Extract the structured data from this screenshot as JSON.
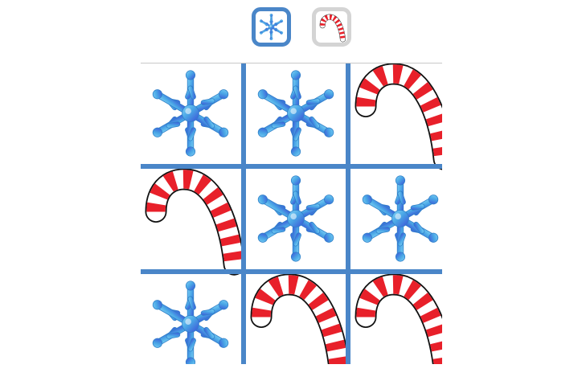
{
  "players": [
    {
      "id": "snowflake",
      "icon": "snowflake-icon",
      "active": true
    },
    {
      "id": "candy-cane",
      "icon": "candy-cane-icon",
      "active": false
    }
  ],
  "board": {
    "cells": [
      [
        "snowflake",
        "snowflake",
        "candy-cane"
      ],
      [
        "candy-cane",
        "snowflake",
        "snowflake"
      ],
      [
        "snowflake",
        "candy-cane",
        "candy-cane"
      ]
    ]
  },
  "colors": {
    "grid": "#4a86c8",
    "active_border": "#4a86c8",
    "inactive_border": "#d4d4d4",
    "candy_red": "#e8202a",
    "snow_light": "#5ab8ea",
    "snow_dark": "#3a55d8"
  }
}
